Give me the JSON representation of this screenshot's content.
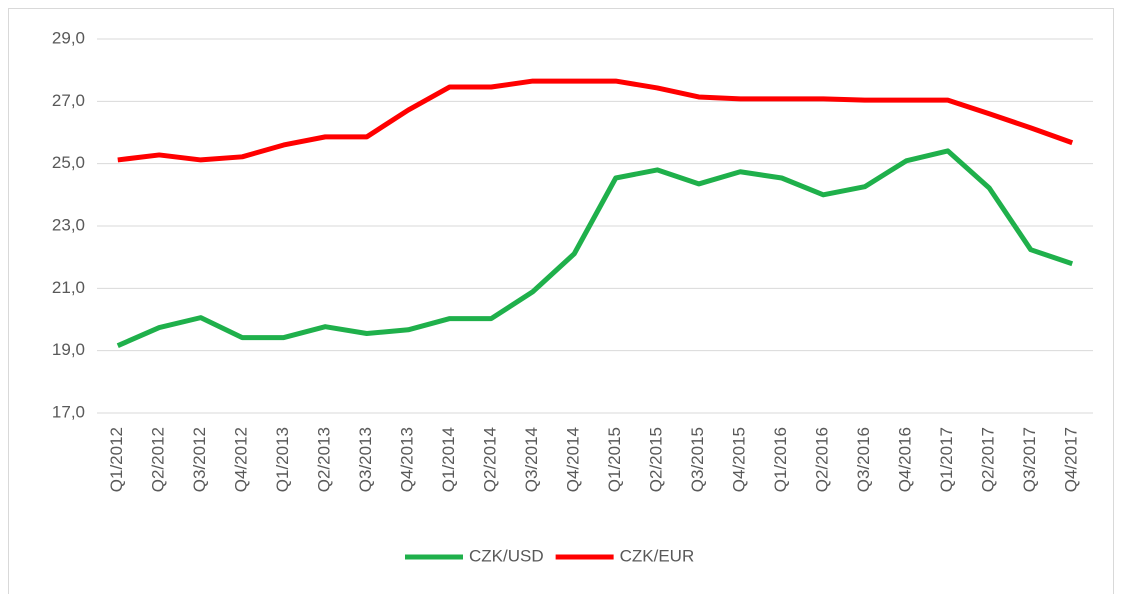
{
  "chart_data": {
    "type": "line",
    "categories": [
      "Q1/2012",
      "Q2/2012",
      "Q3/2012",
      "Q4/2012",
      "Q1/2013",
      "Q2/2013",
      "Q3/2013",
      "Q4/2013",
      "Q1/2014",
      "Q2/2014",
      "Q3/2014",
      "Q4/2014",
      "Q1/2015",
      "Q2/2015",
      "Q3/2015",
      "Q4/2015",
      "Q1/2016",
      "Q2/2016",
      "Q3/2016",
      "Q4/2016",
      "Q1/2017",
      "Q2/2017",
      "Q3/2017",
      "Q4/2017"
    ],
    "series": [
      {
        "name": "CZK/USD",
        "color": "#1fb04b",
        "values": [
          19.16,
          19.74,
          20.06,
          19.42,
          19.42,
          19.77,
          19.55,
          19.67,
          20.03,
          20.03,
          20.89,
          22.11,
          24.54,
          24.8,
          24.35,
          24.74,
          24.54,
          24.0,
          24.26,
          25.09,
          25.41,
          24.22,
          22.24,
          21.79
        ]
      },
      {
        "name": "CZK/EUR",
        "color": "#ff0000",
        "values": [
          25.12,
          25.28,
          25.12,
          25.22,
          25.6,
          25.86,
          25.86,
          26.72,
          27.46,
          27.46,
          27.65,
          27.65,
          27.65,
          27.43,
          27.14,
          27.08,
          27.08,
          27.08,
          27.04,
          27.04,
          27.04,
          26.6,
          26.15,
          25.67
        ]
      }
    ],
    "ylim": [
      17,
      29
    ],
    "yticks": [
      {
        "value": 17,
        "label": "17,0"
      },
      {
        "value": 19,
        "label": "19,0"
      },
      {
        "value": 21,
        "label": "21,0"
      },
      {
        "value": 23,
        "label": "23,0"
      },
      {
        "value": 25,
        "label": "25,0"
      },
      {
        "value": 27,
        "label": "27,0"
      },
      {
        "value": 29,
        "label": "29,0"
      }
    ],
    "grid": true,
    "legend": "bottom"
  }
}
